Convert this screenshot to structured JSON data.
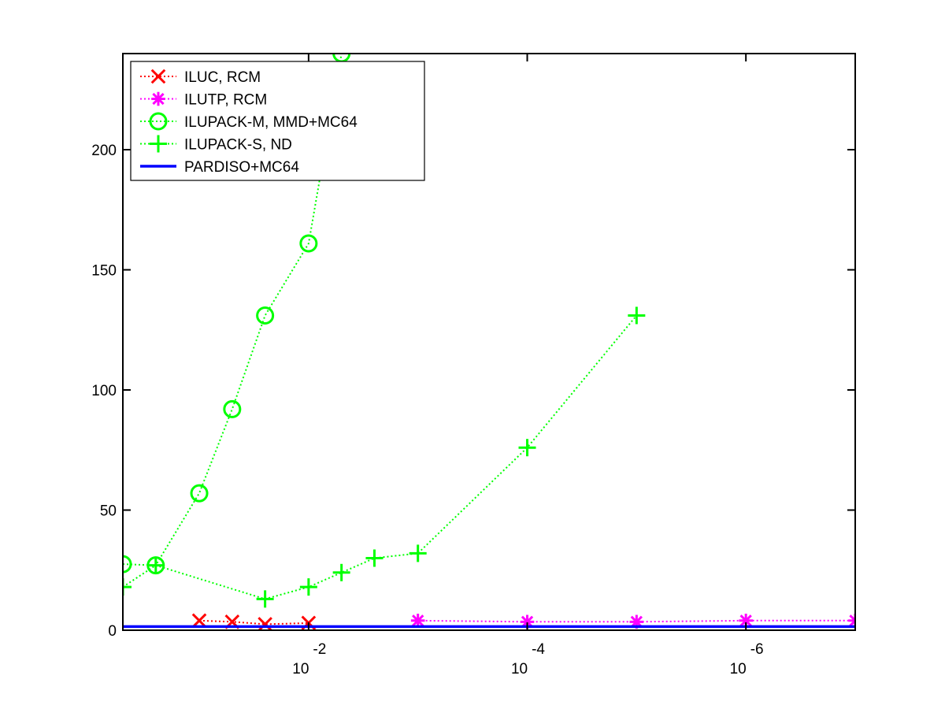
{
  "chart_data": {
    "type": "line",
    "title": "",
    "xlabel": "",
    "ylabel": "",
    "x_scale": "log",
    "x_direction": "decreasing",
    "xlim": [
      0.5,
      1e-07
    ],
    "ylim": [
      0,
      240
    ],
    "y_ticks": [
      0,
      50,
      100,
      150,
      200
    ],
    "x_ticks": [
      {
        "value": 0.01,
        "base": "10",
        "exponent": "-2"
      },
      {
        "value": 0.0001,
        "base": "10",
        "exponent": "-4"
      },
      {
        "value": 1e-06,
        "base": "10",
        "exponent": "-6"
      }
    ],
    "grid": false,
    "legend_position": "top-left",
    "series": [
      {
        "name": "ILUC, RCM",
        "color": "#ff0000",
        "marker": "x",
        "line": "dotted",
        "x": [
          0.1,
          0.05,
          0.025,
          0.01
        ],
        "y": [
          4,
          3.5,
          2.5,
          3
        ]
      },
      {
        "name": "ILUTP, RCM",
        "color": "#ff00ff",
        "marker": "asterisk",
        "line": "dotted",
        "x": [
          0.001,
          0.0001,
          1e-05,
          1e-06,
          1e-07
        ],
        "y": [
          4,
          3.5,
          3.5,
          4,
          4
        ]
      },
      {
        "name": "ILUPACK-M, MMD+MC64",
        "color": "#00ff00",
        "marker": "circle",
        "line": "dotted",
        "x": [
          0.5,
          0.25,
          0.1,
          0.05,
          0.025,
          0.01,
          0.005
        ],
        "y": [
          27.5,
          27,
          57,
          92,
          131,
          161,
          240
        ]
      },
      {
        "name": "ILUPACK-S, ND",
        "color": "#00ff00",
        "marker": "plus",
        "line": "dotted",
        "x": [
          0.5,
          0.25,
          0.025,
          0.01,
          0.005,
          0.0025,
          0.001,
          0.0001,
          1e-05
        ],
        "y": [
          18,
          27,
          13,
          18,
          24,
          30,
          32,
          76,
          131
        ]
      },
      {
        "name": "PARDISO+MC64",
        "color": "#0000ff",
        "marker": "none",
        "line": "solid",
        "x": [
          0.5,
          1e-07
        ],
        "y": [
          1.5,
          1.5
        ]
      }
    ]
  }
}
